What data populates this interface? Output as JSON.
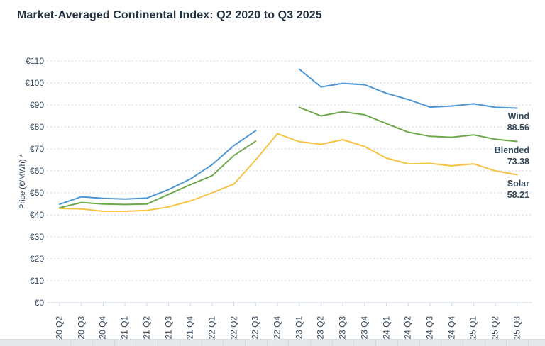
{
  "page": {
    "title": "Market-Averaged Continental Index: Q2 2020 to Q3 2025"
  },
  "colors": {
    "title_text": "#253342",
    "axis_text": "#33475b",
    "gridline": "#cbd6e2",
    "axis_line": "#cbd6e2",
    "background": "#ffffff",
    "bottom_bar": "#e5e8eb"
  },
  "chart_data": {
    "type": "line",
    "title": "Market-Averaged Continental Index: Q2 2020 to Q3 2025",
    "xlabel": "",
    "ylabel": "Price (€/MWh) *",
    "ylim": [
      0,
      110
    ],
    "ytick_step": 10,
    "ytick_labels": [
      "€0",
      "€10",
      "€20",
      "€30",
      "€40",
      "€50",
      "€60",
      "€70",
      "€80",
      "€90",
      "€100",
      "€110"
    ],
    "grid": "horizontal dashed",
    "legend_position": "end-of-line labels (right of last points)",
    "categories": [
      "20 Q2",
      "20 Q3",
      "20 Q4",
      "21 Q1",
      "21 Q2",
      "21 Q3",
      "21 Q4",
      "22 Q1",
      "22 Q2",
      "22 Q3",
      "22 Q4",
      "23 Q1",
      "23 Q2",
      "23 Q3",
      "23 Q4",
      "24 Q1",
      "24 Q2",
      "24 Q3",
      "24 Q4",
      "25 Q1",
      "25 Q2",
      "25 Q3"
    ],
    "series": [
      {
        "name": "Wind",
        "color": "#4e96d3",
        "end_label_value": "88.56",
        "values": [
          44.8,
          48.2,
          47.5,
          47.2,
          47.6,
          51.5,
          56.3,
          62.8,
          71.5,
          78.3,
          null,
          106.3,
          98.2,
          99.8,
          99.2,
          95.3,
          92.5,
          89.0,
          89.5,
          90.5,
          88.9,
          88.56
        ]
      },
      {
        "name": "Blended",
        "color": "#6fa84c",
        "end_label_value": "73.38",
        "values": [
          43.2,
          45.6,
          44.9,
          44.7,
          44.9,
          49.3,
          53.7,
          57.8,
          67.0,
          73.5,
          null,
          88.9,
          85.0,
          86.9,
          85.5,
          81.5,
          77.6,
          75.7,
          75.3,
          76.4,
          74.4,
          73.38
        ]
      },
      {
        "name": "Solar",
        "color": "#f6c344",
        "end_label_value": "58.21",
        "values": [
          42.9,
          42.7,
          41.6,
          41.6,
          42.0,
          43.6,
          46.3,
          50.0,
          54.0,
          65.0,
          76.9,
          73.3,
          72.1,
          74.2,
          71.1,
          65.8,
          63.2,
          63.4,
          62.3,
          63.2,
          60.0,
          58.21
        ]
      }
    ]
  }
}
